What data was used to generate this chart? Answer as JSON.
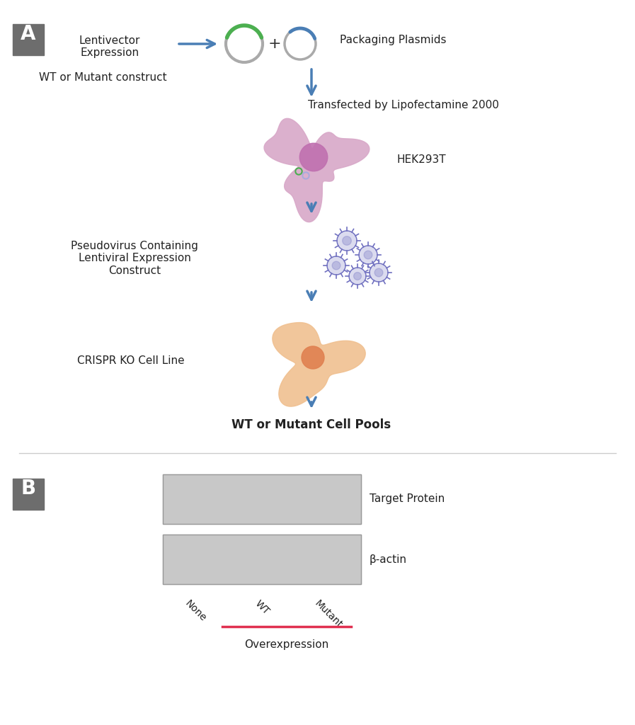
{
  "background_color": "#ffffff",
  "panel_A": {
    "label": "A",
    "label_box_color": "#6d6d6d",
    "label_text_color": "#ffffff",
    "arrow_color": "#4a7eb5",
    "texts": {
      "lentivector": "Lentivector\nExpression",
      "packaging": "Packaging Plasmids",
      "wt_mutant": "WT or Mutant construct",
      "transfected": "Transfected by Lipofectamine 2000",
      "hek": "HEK293T",
      "pseudovirus": "Pseudovirus Containing\nLentiviral Expression\nConstruct",
      "crispr": "CRISPR KO Cell Line",
      "pools": "WT or Mutant Cell Pools"
    },
    "plasmid1_color": "#4caf50",
    "plasmid2_color": "#4a7eb5",
    "plasmid_ring_color": "#aaaaaa",
    "hek_cell_body": "#d8a8c8",
    "hek_cell_nucleus": "#c070b0",
    "hek_cell_dots": [
      "#4caf50",
      "#aaaadd"
    ],
    "crispr_cell_body": "#f0c090",
    "crispr_cell_nucleus": "#e08050",
    "virus_color": "#7070c0",
    "plus_text": "+"
  },
  "panel_B": {
    "label": "B",
    "label_box_color": "#6d6d6d",
    "label_text_color": "#ffffff",
    "target_protein_label": "Target Protein",
    "beta_actin_label": "β-actin",
    "lane_labels": [
      "None",
      "WT",
      "Mutant"
    ],
    "overexpression_label": "Overexpression",
    "overexpression_line_color": "#e03050",
    "gel_bg_color": "#d0d0d0",
    "gel_border_color": "#aaaaaa",
    "band_color_dark": "#111111",
    "band_color_mid": "#555555"
  }
}
